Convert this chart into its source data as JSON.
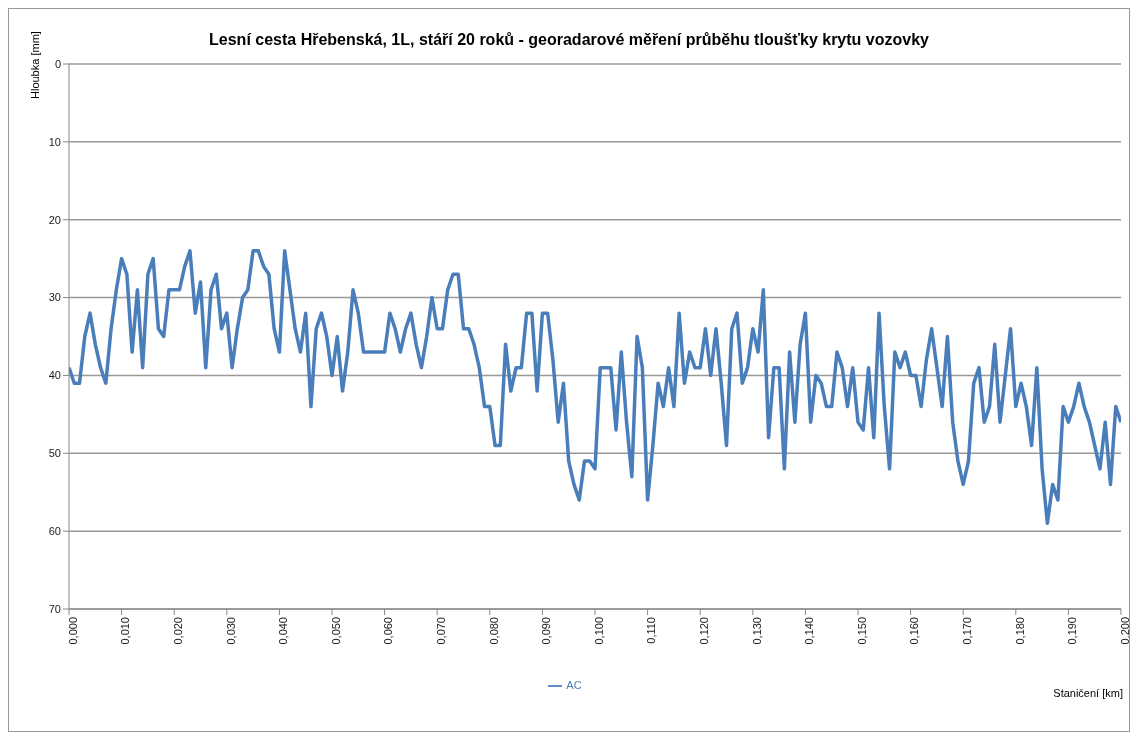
{
  "chart_data": {
    "type": "line",
    "title": "Lesní cesta Hřebenská, 1L, stáří 20 roků - georadarové měření průběhu  tloušťky krytu vozovky",
    "xlabel": "Staničení [km]",
    "ylabel": "Hloubka [mm]",
    "x": [
      0,
      0.001,
      0.002,
      0.003,
      0.004,
      0.005,
      0.006,
      0.007,
      0.008,
      0.009,
      0.01,
      0.011,
      0.012,
      0.013,
      0.014,
      0.015,
      0.016,
      0.017,
      0.018,
      0.019,
      0.02,
      0.021,
      0.022,
      0.023,
      0.024,
      0.025,
      0.026,
      0.027,
      0.028,
      0.029,
      0.03,
      0.031,
      0.032,
      0.033,
      0.034,
      0.035,
      0.036,
      0.037,
      0.038,
      0.039,
      0.04,
      0.041,
      0.042,
      0.043,
      0.044,
      0.045,
      0.046,
      0.047,
      0.048,
      0.049,
      0.05,
      0.051,
      0.052,
      0.053,
      0.054,
      0.055,
      0.056,
      0.057,
      0.058,
      0.059,
      0.06,
      0.061,
      0.062,
      0.063,
      0.064,
      0.065,
      0.066,
      0.067,
      0.068,
      0.069,
      0.07,
      0.071,
      0.072,
      0.073,
      0.074,
      0.075,
      0.076,
      0.077,
      0.078,
      0.079,
      0.08,
      0.081,
      0.082,
      0.083,
      0.084,
      0.085,
      0.086,
      0.087,
      0.088,
      0.089,
      0.09,
      0.091,
      0.092,
      0.093,
      0.094,
      0.095,
      0.096,
      0.097,
      0.098,
      0.099,
      0.1,
      0.101,
      0.102,
      0.103,
      0.104,
      0.105,
      0.106,
      0.107,
      0.108,
      0.109,
      0.11,
      0.111,
      0.112,
      0.113,
      0.114,
      0.115,
      0.116,
      0.117,
      0.118,
      0.119,
      0.12,
      0.121,
      0.122,
      0.123,
      0.124,
      0.125,
      0.126,
      0.127,
      0.128,
      0.129,
      0.13,
      0.131,
      0.132,
      0.133,
      0.134,
      0.135,
      0.136,
      0.137,
      0.138,
      0.139,
      0.14,
      0.141,
      0.142,
      0.143,
      0.144,
      0.145,
      0.146,
      0.147,
      0.148,
      0.149,
      0.15,
      0.151,
      0.152,
      0.153,
      0.154,
      0.155,
      0.156,
      0.157,
      0.158,
      0.159,
      0.16,
      0.161,
      0.162,
      0.163,
      0.164,
      0.165,
      0.166,
      0.167,
      0.168,
      0.169,
      0.17,
      0.171,
      0.172,
      0.173,
      0.174,
      0.175,
      0.176,
      0.177,
      0.178,
      0.179,
      0.18,
      0.181,
      0.182,
      0.183,
      0.184,
      0.185,
      0.186,
      0.187,
      0.188,
      0.189,
      0.19,
      0.191,
      0.192,
      0.193,
      0.194,
      0.195,
      0.196,
      0.197,
      0.198,
      0.199,
      0.2
    ],
    "series": [
      {
        "name": "AC",
        "color": "#4a7ebb",
        "values": [
          39,
          41,
          41,
          35,
          32,
          36,
          39,
          41,
          34,
          29,
          25,
          27,
          37,
          29,
          39,
          27,
          25,
          34,
          35,
          29,
          29,
          29,
          26,
          24,
          32,
          28,
          39,
          29,
          27,
          34,
          32,
          39,
          34,
          30,
          29,
          24,
          24,
          26,
          27,
          34,
          37,
          24,
          29,
          34,
          37,
          32,
          44,
          34,
          32,
          35,
          40,
          35,
          42,
          37,
          29,
          32,
          37,
          37,
          37,
          37,
          37,
          32,
          34,
          37,
          34,
          32,
          36,
          39,
          35,
          30,
          34,
          34,
          29,
          27,
          27,
          34,
          34,
          36,
          39,
          44,
          44,
          49,
          49,
          36,
          42,
          39,
          39,
          32,
          32,
          42,
          32,
          32,
          38,
          46,
          41,
          51,
          54,
          56,
          51,
          51,
          52,
          39,
          39,
          39,
          47,
          37,
          46,
          53,
          35,
          39,
          56,
          49,
          41,
          44,
          39,
          44,
          32,
          41,
          37,
          39,
          39,
          34,
          40,
          34,
          41,
          49,
          34,
          32,
          41,
          39,
          34,
          37,
          29,
          48,
          39,
          39,
          52,
          37,
          46,
          36,
          32,
          46,
          40,
          41,
          44,
          44,
          37,
          39,
          44,
          39,
          46,
          47,
          39,
          48,
          32,
          44,
          52,
          37,
          39,
          37,
          40,
          40,
          44,
          38,
          34,
          39,
          44,
          35,
          46,
          51,
          54,
          51,
          41,
          39,
          46,
          44,
          36,
          46,
          40,
          34,
          44,
          41,
          44,
          49,
          39,
          52,
          59,
          54,
          56,
          44,
          46,
          44,
          41,
          44,
          46,
          49,
          52,
          46,
          54,
          44,
          46
        ]
      }
    ],
    "xlim": [
      0,
      0.2
    ],
    "xticks": [
      {
        "value": 0,
        "label": "0,000"
      },
      {
        "value": 0.01,
        "label": "0,010"
      },
      {
        "value": 0.02,
        "label": "0,020"
      },
      {
        "value": 0.03,
        "label": "0,030"
      },
      {
        "value": 0.04,
        "label": "0,040"
      },
      {
        "value": 0.05,
        "label": "0,050"
      },
      {
        "value": 0.06,
        "label": "0,060"
      },
      {
        "value": 0.07,
        "label": "0,070"
      },
      {
        "value": 0.08,
        "label": "0,080"
      },
      {
        "value": 0.09,
        "label": "0,090"
      },
      {
        "value": 0.1,
        "label": "0,100"
      },
      {
        "value": 0.11,
        "label": "0,110"
      },
      {
        "value": 0.12,
        "label": "0,120"
      },
      {
        "value": 0.13,
        "label": "0,130"
      },
      {
        "value": 0.14,
        "label": "0,140"
      },
      {
        "value": 0.15,
        "label": "0,150"
      },
      {
        "value": 0.16,
        "label": "0,160"
      },
      {
        "value": 0.17,
        "label": "0,170"
      },
      {
        "value": 0.18,
        "label": "0,180"
      },
      {
        "value": 0.19,
        "label": "0,190"
      },
      {
        "value": 0.2,
        "label": "0,200"
      }
    ],
    "ylim": [
      70,
      0
    ],
    "yticks": [
      0,
      10,
      20,
      30,
      40,
      50,
      60,
      70
    ],
    "grid": "y",
    "legend": "bottom",
    "marker": "none",
    "line_style": "solid"
  }
}
